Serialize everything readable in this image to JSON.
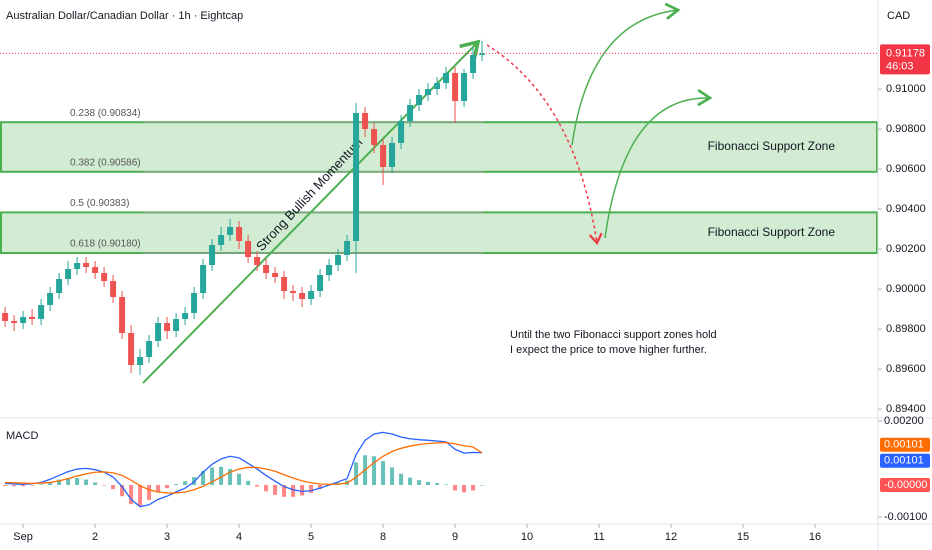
{
  "chart_data": [
    {
      "type": "candlestick",
      "title": "Australian Dollar/Canadian Dollar · 1h · Eightcap",
      "currency": "CAD",
      "x": [
        -6,
        -3,
        0,
        3,
        6,
        9,
        12,
        15,
        18,
        21,
        24,
        27,
        30,
        33,
        36,
        39,
        42,
        45,
        48,
        51,
        54,
        57,
        60,
        63,
        66,
        69,
        72,
        75,
        78,
        81,
        84,
        87,
        90,
        93,
        96,
        99,
        102,
        105,
        108,
        111,
        114,
        117,
        120,
        123,
        126,
        129,
        132,
        135,
        138,
        141,
        144,
        147,
        150,
        153
      ],
      "open": [
        0.8988,
        0.8984,
        0.8983,
        0.8986,
        0.8985,
        0.8992,
        0.8998,
        0.9005,
        0.901,
        0.9013,
        0.9011,
        0.9008,
        0.9004,
        0.8996,
        0.8978,
        0.8962,
        0.8966,
        0.8974,
        0.8983,
        0.8979,
        0.8985,
        0.8988,
        0.8998,
        0.9012,
        0.9022,
        0.9027,
        0.9031,
        0.9024,
        0.9016,
        0.9012,
        0.9008,
        0.9006,
        0.8999,
        0.8998,
        0.8995,
        0.8999,
        0.9007,
        0.9012,
        0.9017,
        0.9024,
        0.9088,
        0.908,
        0.9072,
        0.9061,
        0.9073,
        0.9084,
        0.9092,
        0.9097,
        0.91,
        0.9103,
        0.9108,
        0.9094,
        0.9108,
        0.9117
      ],
      "high": [
        0.8991,
        0.8987,
        0.8989,
        0.899,
        0.8995,
        0.9001,
        0.9008,
        0.9014,
        0.9016,
        0.9016,
        0.9014,
        0.9011,
        0.9007,
        0.8999,
        0.8982,
        0.897,
        0.8977,
        0.8986,
        0.8986,
        0.8988,
        0.8991,
        0.9001,
        0.9015,
        0.9025,
        0.9031,
        0.9035,
        0.9034,
        0.9027,
        0.9019,
        0.9015,
        0.9011,
        0.9009,
        0.9002,
        0.9001,
        0.9002,
        0.901,
        0.9015,
        0.902,
        0.9027,
        0.9093,
        0.9091,
        0.9083,
        0.9075,
        0.9076,
        0.9087,
        0.9095,
        0.91,
        0.9103,
        0.9106,
        0.9111,
        0.9111,
        0.911,
        0.9121,
        0.9124
      ],
      "low": [
        0.8981,
        0.8979,
        0.898,
        0.8982,
        0.8982,
        0.8989,
        0.8995,
        0.9002,
        0.9007,
        0.9008,
        0.9005,
        0.9001,
        0.8993,
        0.8975,
        0.8958,
        0.8957,
        0.8963,
        0.8971,
        0.8975,
        0.8976,
        0.8982,
        0.8985,
        0.8995,
        0.9009,
        0.9019,
        0.9024,
        0.902,
        0.9013,
        0.9009,
        0.9005,
        0.9003,
        0.8995,
        0.8994,
        0.8991,
        0.8992,
        0.8996,
        0.9004,
        0.9009,
        0.9014,
        0.9008,
        0.9076,
        0.9068,
        0.9052,
        0.9058,
        0.907,
        0.9081,
        0.9089,
        0.9094,
        0.9097,
        0.91,
        0.9083,
        0.9091,
        0.9105,
        0.9114
      ],
      "close": [
        0.8984,
        0.8983,
        0.8986,
        0.8985,
        0.8992,
        0.8998,
        0.9005,
        0.901,
        0.9013,
        0.9011,
        0.9008,
        0.9004,
        0.8996,
        0.8978,
        0.8962,
        0.8966,
        0.8974,
        0.8983,
        0.8979,
        0.8985,
        0.8988,
        0.8998,
        0.9012,
        0.9022,
        0.9027,
        0.9031,
        0.9024,
        0.9016,
        0.9012,
        0.9008,
        0.9006,
        0.8999,
        0.8998,
        0.8995,
        0.8999,
        0.9007,
        0.9012,
        0.9017,
        0.9024,
        0.9088,
        0.908,
        0.9072,
        0.9061,
        0.9073,
        0.9084,
        0.9092,
        0.9097,
        0.91,
        0.9103,
        0.9108,
        0.9094,
        0.9108,
        0.9117,
        0.91178
      ],
      "up_color": "#26a69a",
      "down_color": "#ef5350",
      "xlim": [
        -7.7,
        285
      ],
      "xticks": [
        {
          "value": 0,
          "label": "Sep"
        },
        {
          "value": 24,
          "label": "2"
        },
        {
          "value": 48,
          "label": "3"
        },
        {
          "value": 72,
          "label": "4"
        },
        {
          "value": 96,
          "label": "5"
        },
        {
          "value": 120,
          "label": "8"
        },
        {
          "value": 144,
          "label": "9"
        },
        {
          "value": 168,
          "label": "10"
        },
        {
          "value": 192,
          "label": "11"
        },
        {
          "value": 216,
          "label": "12"
        },
        {
          "value": 240,
          "label": "15"
        },
        {
          "value": 264,
          "label": "16"
        }
      ],
      "ylim": [
        0.8937,
        0.91445
      ],
      "yticks": [
        {
          "value": 0.91,
          "label": "0.91000"
        },
        {
          "value": 0.908,
          "label": "0.90800"
        },
        {
          "value": 0.906,
          "label": "0.90600"
        },
        {
          "value": 0.904,
          "label": "0.90400"
        },
        {
          "value": 0.902,
          "label": "0.90200"
        },
        {
          "value": 0.9,
          "label": "0.90000"
        },
        {
          "value": 0.898,
          "label": "0.89800"
        },
        {
          "value": 0.896,
          "label": "0.89600"
        },
        {
          "value": 0.894,
          "label": "0.89400"
        }
      ],
      "last_price": 0.91178,
      "countdown": "46:03",
      "fibonacci": {
        "levels": [
          0.90834,
          0.90586,
          0.90383,
          0.9018
        ],
        "labels": [
          "0.238 (0.90834)",
          "0.382 (0.90586)",
          "0.5 (0.90383)",
          "0.618 (0.90180)"
        ]
      },
      "zone_labels": [
        "Fibonacci Support Zone",
        "Fibonacci Support Zone"
      ],
      "annotations": [
        "Strong Bullish Momentum",
        "Until the two Fibonacci support zones hold",
        "I expect the price to move higher further."
      ]
    },
    {
      "type": "line",
      "title": "MACD",
      "ylim": [
        -0.00116,
        0.0021
      ],
      "yticks": [
        {
          "value": 0.002,
          "label": "0.00200"
        },
        {
          "value": -0.001,
          "label": "-0.00100"
        }
      ],
      "series": [
        {
          "color": "#2962ff",
          "last_label": 0.00101,
          "values": [
            5e-05,
            3e-05,
            2e-05,
            4e-05,
            8e-05,
            0.00018,
            0.0003,
            0.00042,
            0.0005,
            0.00052,
            0.00048,
            0.0004,
            0.00025,
            -5e-05,
            -0.00045,
            -0.00068,
            -0.00062,
            -0.00045,
            -0.00035,
            -0.00022,
            -0.0001,
            0.0001,
            0.0004,
            0.00065,
            0.00082,
            0.0009,
            0.00085,
            0.00068,
            0.0005,
            0.0003,
            0.00012,
            -5e-05,
            -0.00015,
            -0.0002,
            -0.00018,
            -0.0001,
            0.0,
            0.0001,
            0.0002,
            0.00095,
            0.0014,
            0.0016,
            0.00165,
            0.0016,
            0.0015,
            0.00145,
            0.00142,
            0.0014,
            0.00138,
            0.00135,
            0.00112,
            0.001,
            0.00102,
            0.00101
          ]
        },
        {
          "color": "#ff6d00",
          "last_label": 0.00101,
          "values": [
            8e-05,
            7e-05,
            6e-05,
            5e-05,
            6e-05,
            8e-05,
            0.00013,
            0.0002,
            0.00028,
            0.00035,
            0.0004,
            0.00041,
            0.00038,
            0.0003,
            0.00015,
            -2e-05,
            -0.00015,
            -0.00022,
            -0.00025,
            -0.00025,
            -0.00022,
            -0.00015,
            -4e-05,
            0.0001,
            0.00025,
            0.0004,
            0.0005,
            0.00055,
            0.00055,
            0.0005,
            0.00043,
            0.00032,
            0.00022,
            0.00013,
            7e-05,
            3e-05,
            2e-05,
            3e-05,
            6e-05,
            0.00024,
            0.00047,
            0.0007,
            0.0009,
            0.00105,
            0.00115,
            0.00122,
            0.00127,
            0.0013,
            0.00132,
            0.00133,
            0.00129,
            0.00123,
            0.00119,
            0.00101
          ]
        }
      ],
      "histogram": {
        "up_color": "#26a69a",
        "down_color": "#ff5252",
        "last_label": {
          "value": 0,
          "label": "-0.00000"
        },
        "values": [
          -3e-05,
          -4e-05,
          -4e-05,
          -1e-05,
          2e-05,
          0.0001,
          0.00017,
          0.00022,
          0.00022,
          0.00017,
          8e-05,
          -1e-05,
          -0.00013,
          -0.00035,
          -0.0006,
          -0.00066,
          -0.00047,
          -0.00023,
          -0.0001,
          3e-05,
          0.00012,
          0.00025,
          0.00044,
          0.00055,
          0.00057,
          0.0005,
          0.00035,
          0.00013,
          -5e-05,
          -0.0002,
          -0.00031,
          -0.00037,
          -0.00037,
          -0.00033,
          -0.00025,
          -0.00013,
          -2e-05,
          7e-05,
          0.00014,
          0.00071,
          0.00093,
          0.0009,
          0.00075,
          0.00055,
          0.00035,
          0.00023,
          0.00015,
          0.0001,
          6e-05,
          2e-05,
          -0.00017,
          -0.00023,
          -0.00017,
          0.0
        ]
      }
    }
  ]
}
